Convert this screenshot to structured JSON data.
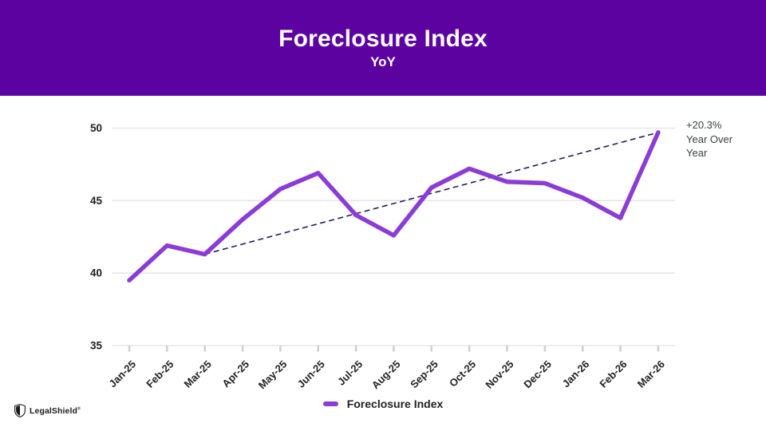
{
  "header": {
    "title": "Foreclosure Index",
    "subtitle": "YoY"
  },
  "chart_data": {
    "type": "line",
    "title": "Foreclosure Index",
    "subtitle": "YoY",
    "categories": [
      "Jan-25",
      "Feb-25",
      "Mar-25",
      "Apr-25",
      "May-25",
      "Jun-25",
      "Jul-25",
      "Aug-25",
      "Sep-25",
      "Oct-25",
      "Nov-25",
      "Dec-25",
      "Jan-26",
      "Feb-26",
      "Mar-26"
    ],
    "series": [
      {
        "name": "Foreclosure Index",
        "values": [
          39.5,
          41.9,
          41.3,
          43.7,
          45.8,
          46.9,
          44.0,
          42.6,
          45.9,
          47.2,
          46.3,
          46.2,
          45.2,
          43.8,
          49.7
        ],
        "color": "#8B3BD6"
      }
    ],
    "trend_line": {
      "style": "dashed",
      "from_category": "Mar-25",
      "from_value": 41.3,
      "to_category": "Mar-26",
      "to_value": 49.7,
      "color": "#2A1A5E"
    },
    "annotation": "+20.3% Year Over Year",
    "ylim": [
      35,
      50
    ],
    "yticks": [
      35,
      40,
      45,
      50
    ],
    "grid": true,
    "legend_position": "bottom"
  },
  "legend": {
    "label": "Foreclosure Index"
  },
  "annotation": {
    "text": "+20.3% Year Over Year"
  },
  "brand": {
    "name": "LegalShield",
    "mark": "®"
  },
  "colors": {
    "banner": "#5B02A1",
    "series": "#8B3BD6",
    "trend": "#2A1A5E",
    "grid": "#E2E2E2",
    "tick": "#CFCFCF",
    "axis_text": "#202124",
    "annotation_text": "#3C4043"
  }
}
